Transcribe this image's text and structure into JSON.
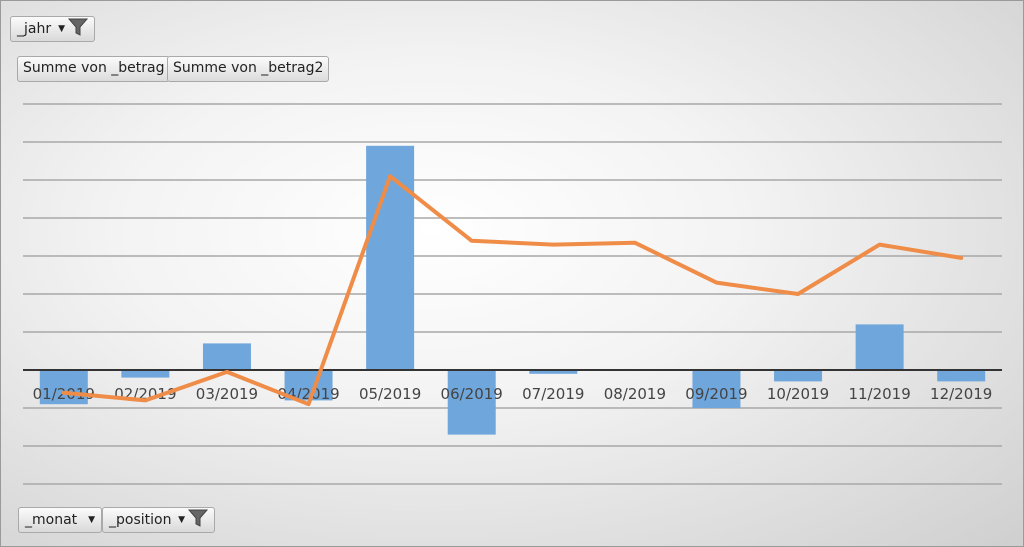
{
  "filters": {
    "year": {
      "label": "_jahr",
      "icon": "funnel-icon"
    },
    "month": {
      "label": "_monat",
      "icon": "dropdown-arrow-icon"
    },
    "position": {
      "label": "_position",
      "icon": "funnel-icon"
    }
  },
  "legend": {
    "items": [
      "Summe von _betrag",
      "Summe von _betrag2"
    ]
  },
  "colors": {
    "bars": "#6fa6dc",
    "line": "#ef8c48",
    "grid": "#a8a8a8",
    "zero_axis": "#333333"
  },
  "chart_data": {
    "type": "bar",
    "categories": [
      "01/2019",
      "02/2019",
      "03/2019",
      "04/2019",
      "05/2019",
      "06/2019",
      "07/2019",
      "08/2019",
      "09/2019",
      "10/2019",
      "11/2019",
      "12/2019"
    ],
    "series": [
      {
        "name": "Summe von _betrag",
        "type": "bar",
        "values": [
          -0.9,
          -0.2,
          0.7,
          -0.8,
          5.9,
          -1.7,
          -0.1,
          0,
          -1.0,
          -0.3,
          1.2,
          -0.3
        ]
      },
      {
        "name": "Summe von _betrag2",
        "type": "line",
        "values": [
          -0.6,
          -0.8,
          -0.05,
          -0.9,
          5.1,
          3.4,
          3.3,
          3.35,
          2.3,
          2.0,
          3.3,
          2.95
        ]
      }
    ],
    "ylim": [
      -3,
      7
    ],
    "gridlines": [
      -3,
      -2,
      -1,
      0,
      1,
      2,
      3,
      4,
      5,
      6,
      7
    ],
    "grid": true,
    "title": "",
    "xlabel": "",
    "ylabel": ""
  }
}
